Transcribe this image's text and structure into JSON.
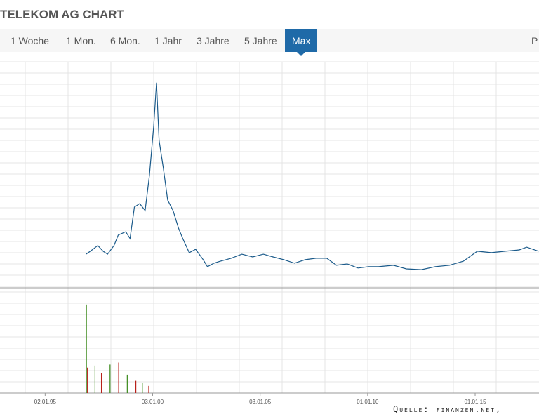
{
  "header": {
    "title": "TELEKOM AG CHART"
  },
  "tabs": [
    "1 Woche",
    "1 Mon.",
    "6 Mon.",
    "1 Jahr",
    "3 Jahre",
    "5 Jahre",
    "Max"
  ],
  "active_tab": 6,
  "right_link": "P",
  "source": "Quelle: finanzen.net,",
  "chart_data": [
    {
      "type": "line",
      "x": [
        1996.9,
        1997.1,
        1997.45,
        1997.7,
        1997.9,
        1998.2,
        1998.4,
        1998.75,
        1998.95,
        1999.15,
        1999.4,
        1999.65,
        1999.85,
        2000.05,
        2000.18,
        2000.3,
        2000.5,
        2000.7,
        2000.95,
        2001.2,
        2001.4,
        2001.7,
        2002.0,
        2002.35,
        2002.55,
        2002.85,
        2003.15,
        2003.65,
        2004.15,
        2004.65,
        2005.15,
        2005.6,
        2006.1,
        2006.6,
        2007.1,
        2007.6,
        2008.1,
        2008.55,
        2009.05,
        2009.55,
        2010.05,
        2010.5,
        2011.2,
        2011.8,
        2012.5,
        2013.15,
        2013.8,
        2014.45,
        2015.1,
        2015.75,
        2016.4,
        2017.05,
        2017.4,
        2017.95
      ],
      "series": [
        {
          "color": "#1a5a8a",
          "values": [
            16.5,
            18,
            20.9,
            18,
            16.5,
            20.9,
            26.3,
            28,
            24.5,
            40.6,
            42.4,
            38.8,
            56.8,
            82,
            104.3,
            74.8,
            60.4,
            44.2,
            38.8,
            29.9,
            24.5,
            17.3,
            19,
            13.7,
            10.1,
            11.9,
            12.9,
            14.4,
            16.5,
            15.1,
            16.5,
            15.1,
            13.7,
            11.9,
            13.7,
            14.4,
            14.4,
            10.8,
            11.5,
            9.4,
            10.1,
            10.1,
            10.8,
            9.0,
            8.6,
            10.1,
            10.8,
            12.9,
            18,
            17.3,
            18,
            18.7,
            20.1,
            18
          ]
        }
      ],
      "xlim": [
        1992.9,
        2017.97
      ],
      "ylim": [
        0,
        115
      ]
    },
    {
      "type": "bar",
      "x": [
        1996.9,
        1996.95,
        1997.3,
        1997.6,
        1998.0,
        1998.4,
        1998.8,
        1999.2,
        1999.5,
        1999.8
      ],
      "series": [
        {
          "color": "#3a8a1a",
          "values": [
            87,
            null,
            27,
            null,
            28,
            null,
            18,
            null,
            10,
            null
          ]
        },
        {
          "color": "#b8201a",
          "values": [
            null,
            25,
            null,
            20,
            null,
            30,
            null,
            12,
            null,
            7
          ]
        }
      ],
      "xlim": [
        1992.9,
        2017.97
      ],
      "ylim": [
        0,
        100
      ],
      "xticks": [
        {
          "value": 1995.0,
          "label": "02.01.95"
        },
        {
          "value": 2000.0,
          "label": "03.01.00"
        },
        {
          "value": 2005.0,
          "label": "03.01.05"
        },
        {
          "value": 2010.0,
          "label": "01.01.10"
        },
        {
          "value": 2015.0,
          "label": "01.01.15"
        }
      ]
    }
  ]
}
